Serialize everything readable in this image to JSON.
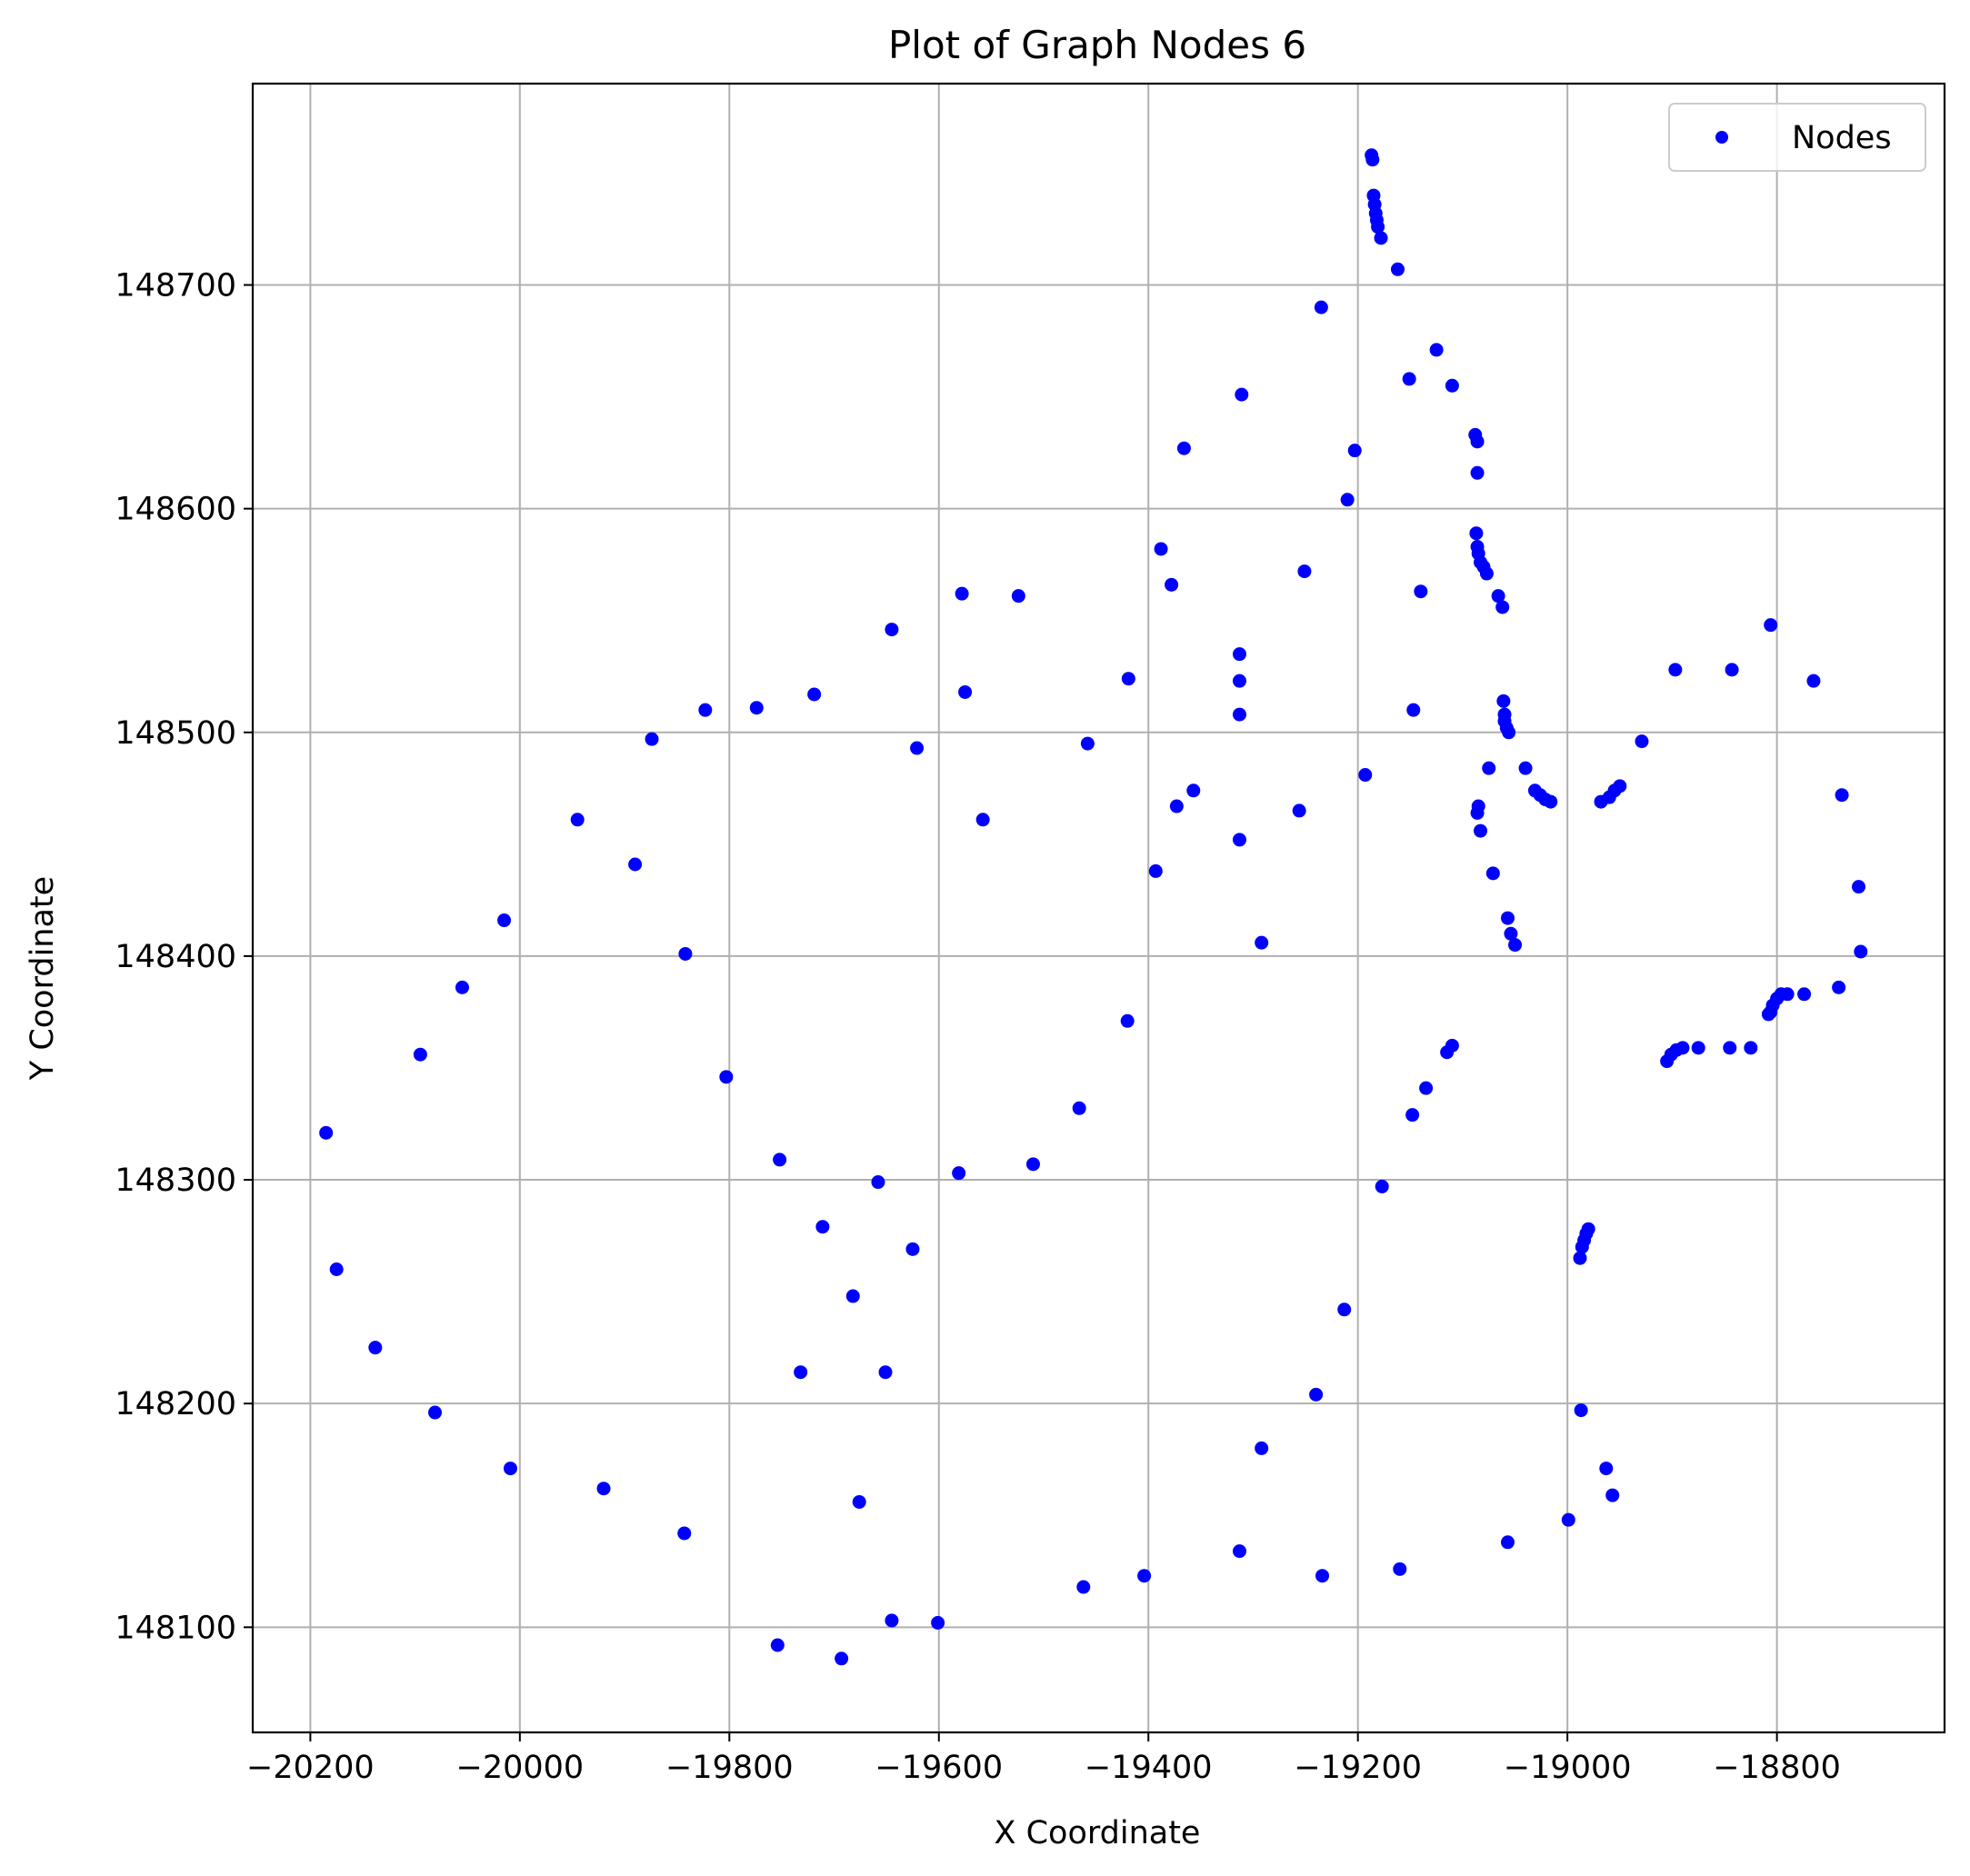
{
  "chart_data": {
    "type": "scatter",
    "title": "Plot of Graph Nodes 6",
    "xlabel": "X Coordinate",
    "ylabel": "Y Coordinate",
    "xlim": [
      -20255,
      -18640
    ],
    "ylim": [
      148053,
      148790
    ],
    "xticks": [
      -20200,
      -20000,
      -19800,
      -19600,
      -19400,
      -19200,
      -19000,
      -18800
    ],
    "xtick_labels": [
      "−20200",
      "−20000",
      "−19800",
      "−19600",
      "−19400",
      "−19200",
      "−19000",
      "−18800"
    ],
    "yticks": [
      148100,
      148200,
      148300,
      148400,
      148500,
      148600,
      148700
    ],
    "ytick_labels": [
      "148100",
      "148200",
      "148300",
      "148400",
      "148500",
      "148600",
      "148700"
    ],
    "grid": true,
    "legend_position": "upper-right",
    "series": [
      {
        "name": "Nodes",
        "color": "#0000ff",
        "marker": "circle",
        "points": [
          [
            -19187,
            148758
          ],
          [
            -19186,
            148756
          ],
          [
            -19185,
            148740
          ],
          [
            -19184,
            148736
          ],
          [
            -19183,
            148732
          ],
          [
            -19182,
            148729
          ],
          [
            -19181,
            148726
          ],
          [
            -19178,
            148721
          ],
          [
            -19162,
            148707
          ],
          [
            -19235,
            148690
          ],
          [
            -19125,
            148671
          ],
          [
            -19151,
            148658
          ],
          [
            -19110,
            148655
          ],
          [
            -19311,
            148651
          ],
          [
            -19088,
            148633
          ],
          [
            -19086,
            148630
          ],
          [
            -19366,
            148627
          ],
          [
            -19203,
            148626
          ],
          [
            -19086,
            148616
          ],
          [
            -19210,
            148604
          ],
          [
            -19087,
            148589
          ],
          [
            -19086,
            148583
          ],
          [
            -19085,
            148580
          ],
          [
            -19083,
            148576
          ],
          [
            -19080,
            148574
          ],
          [
            -19077,
            148571
          ],
          [
            -19388,
            148582
          ],
          [
            -19251,
            148572
          ],
          [
            -19378,
            148566
          ],
          [
            -19140,
            148563
          ],
          [
            -19578,
            148562
          ],
          [
            -19524,
            148561
          ],
          [
            -19066,
            148561
          ],
          [
            -19062,
            148556
          ],
          [
            -19645,
            148546
          ],
          [
            -18806,
            148548
          ],
          [
            -18897,
            148528
          ],
          [
            -18843,
            148528
          ],
          [
            -19313,
            148535
          ],
          [
            -19313,
            148523
          ],
          [
            -19419,
            148524
          ],
          [
            -18765,
            148523
          ],
          [
            -19719,
            148517
          ],
          [
            -19575,
            148518
          ],
          [
            -19061,
            148514
          ],
          [
            -19060,
            148508
          ],
          [
            -19060,
            148505
          ],
          [
            -19058,
            148502
          ],
          [
            -19056,
            148500
          ],
          [
            -19313,
            148508
          ],
          [
            -19823,
            148510
          ],
          [
            -19774,
            148511
          ],
          [
            -19147,
            148510
          ],
          [
            -19874,
            148497
          ],
          [
            -18929,
            148496
          ],
          [
            -19458,
            148495
          ],
          [
            -19621,
            148493
          ],
          [
            -19075,
            148484
          ],
          [
            -19040,
            148484
          ],
          [
            -19193,
            148481
          ],
          [
            -18950,
            148476
          ],
          [
            -18955,
            148474
          ],
          [
            -19031,
            148474
          ],
          [
            -19026,
            148472
          ],
          [
            -19021,
            148470
          ],
          [
            -19016,
            148469
          ],
          [
            -18960,
            148471
          ],
          [
            -18968,
            148469
          ],
          [
            -19357,
            148474
          ],
          [
            -18738,
            148472
          ],
          [
            -19373,
            148467
          ],
          [
            -19085,
            148467
          ],
          [
            -19086,
            148464
          ],
          [
            -19256,
            148465
          ],
          [
            -19945,
            148461
          ],
          [
            -19558,
            148461
          ],
          [
            -19083,
            148456
          ],
          [
            -19313,
            148452
          ],
          [
            -19890,
            148441
          ],
          [
            -19393,
            148438
          ],
          [
            -19071,
            148437
          ],
          [
            -18722,
            148431
          ],
          [
            -20015,
            148416
          ],
          [
            -19057,
            148417
          ],
          [
            -19054,
            148410
          ],
          [
            -19050,
            148405
          ],
          [
            -19292,
            148406
          ],
          [
            -19842,
            148401
          ],
          [
            -18720,
            148402
          ],
          [
            -20055,
            148386
          ],
          [
            -18741,
            148386
          ],
          [
            -18774,
            148383
          ],
          [
            -18790,
            148383
          ],
          [
            -18796,
            148383
          ],
          [
            -18800,
            148381
          ],
          [
            -18804,
            148378
          ],
          [
            -18806,
            148375
          ],
          [
            -18808,
            148374
          ],
          [
            -19420,
            148371
          ],
          [
            -19110,
            148360
          ],
          [
            -19115,
            148357
          ],
          [
            -18875,
            148359
          ],
          [
            -18845,
            148359
          ],
          [
            -18825,
            148359
          ],
          [
            -18890,
            148359
          ],
          [
            -18896,
            148358
          ],
          [
            -18901,
            148356
          ],
          [
            -18905,
            148353
          ],
          [
            -20095,
            148356
          ],
          [
            -19803,
            148346
          ],
          [
            -19135,
            148341
          ],
          [
            -19466,
            148332
          ],
          [
            -19148,
            148329
          ],
          [
            -20185,
            148321
          ],
          [
            -19752,
            148309
          ],
          [
            -19510,
            148307
          ],
          [
            -19581,
            148303
          ],
          [
            -19658,
            148299
          ],
          [
            -19177,
            148297
          ],
          [
            -18980,
            148278
          ],
          [
            -18982,
            148276
          ],
          [
            -18984,
            148273
          ],
          [
            -18986,
            148270
          ],
          [
            -18988,
            148265
          ],
          [
            -19711,
            148279
          ],
          [
            -19625,
            148269
          ],
          [
            -20175,
            148260
          ],
          [
            -19682,
            148248
          ],
          [
            -19213,
            148242
          ],
          [
            -20138,
            148225
          ],
          [
            -19732,
            148214
          ],
          [
            -19651,
            148214
          ],
          [
            -19240,
            148204
          ],
          [
            -20081,
            148196
          ],
          [
            -18987,
            148197
          ],
          [
            -19292,
            148180
          ],
          [
            -20009,
            148171
          ],
          [
            -18963,
            148171
          ],
          [
            -19920,
            148162
          ],
          [
            -18957,
            148159
          ],
          [
            -19676,
            148156
          ],
          [
            -18999,
            148148
          ],
          [
            -19843,
            148142
          ],
          [
            -19057,
            148138
          ],
          [
            -19313,
            148134
          ],
          [
            -19160,
            148126
          ],
          [
            -19404,
            148123
          ],
          [
            -19234,
            148123
          ],
          [
            -19462,
            148118
          ],
          [
            -19645,
            148103
          ],
          [
            -19601,
            148102
          ],
          [
            -19754,
            148092
          ],
          [
            -19693,
            148086
          ]
        ]
      }
    ]
  }
}
